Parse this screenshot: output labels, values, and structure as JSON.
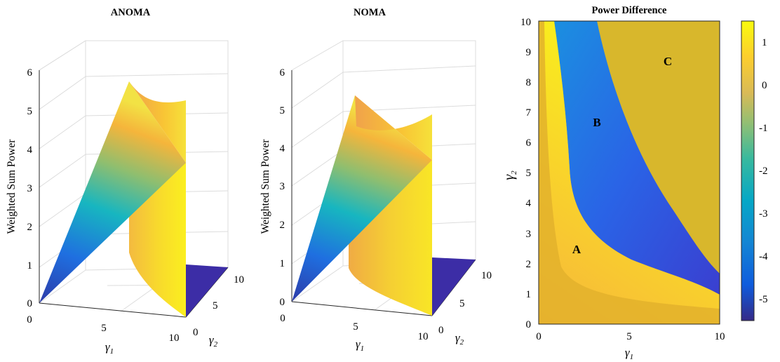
{
  "colors": {
    "parula": [
      "#352a87",
      "#0363e1",
      "#1485d4",
      "#06a7c6",
      "#38b99e",
      "#92bf73",
      "#d9ba56",
      "#fcce2e",
      "#f9fb0e"
    ],
    "plateau": "#d8b72c",
    "grid": "#d9d9d9",
    "axis": "#262626"
  },
  "chart_data": [
    {
      "type": "surface3d",
      "title": "ANOMA",
      "zlabel": "Weighted Sum Power",
      "xlabel": "γ1",
      "ylabel": "γ2",
      "xticks": [
        "0",
        "5",
        "10"
      ],
      "yticks": [
        "0",
        "5",
        "10"
      ],
      "zticks": [
        "0",
        "1",
        "2",
        "3",
        "4",
        "5",
        "6"
      ],
      "xlim": [
        0,
        10
      ],
      "ylim": [
        0,
        10
      ],
      "zlim": [
        0,
        6
      ]
    },
    {
      "type": "surface3d",
      "title": "NOMA",
      "zlabel": "Weighted Sum Power",
      "xlabel": "γ1",
      "ylabel": "γ2",
      "xticks": [
        "0",
        "5",
        "10"
      ],
      "yticks": [
        "0",
        "5",
        "10"
      ],
      "zticks": [
        "0",
        "1",
        "2",
        "3",
        "4",
        "5",
        "6"
      ],
      "xlim": [
        0,
        10
      ],
      "ylim": [
        0,
        10
      ],
      "zlim": [
        0,
        6
      ]
    },
    {
      "type": "heatmap",
      "title": "Power Difference",
      "xlabel": "γ1",
      "ylabel": "γ2",
      "xlim": [
        0,
        10
      ],
      "ylim": [
        0,
        10
      ],
      "xticks": [
        "0",
        "5",
        "10"
      ],
      "yticks": [
        "0",
        "1",
        "2",
        "3",
        "4",
        "5",
        "6",
        "7",
        "8",
        "9",
        "10"
      ],
      "colorbar_ticks": [
        "1",
        "0",
        "-1",
        "-2",
        "-3",
        "-4",
        "-5"
      ],
      "colorbar_range": [
        -5.5,
        1.5
      ],
      "regions": [
        {
          "label": "A",
          "x": 2.1,
          "y": 2.4
        },
        {
          "label": "B",
          "x": 3.2,
          "y": 6.6
        },
        {
          "label": "C",
          "x": 7.1,
          "y": 8.5
        }
      ]
    }
  ]
}
